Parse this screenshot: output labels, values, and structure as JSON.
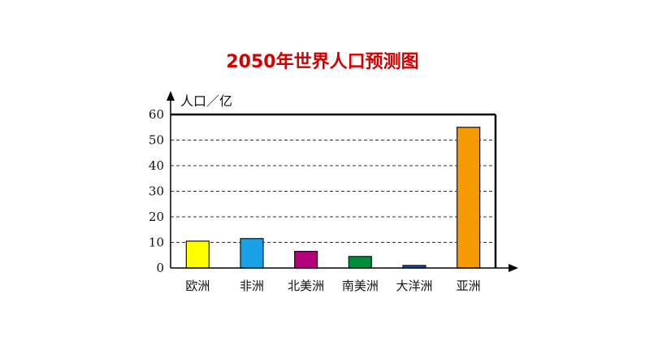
{
  "chart_data": {
    "type": "bar",
    "title": "2050年世界人口预测图",
    "ylabel": "人口／亿",
    "xlabel": "",
    "categories": [
      "欧洲",
      "非洲",
      "北美洲",
      "南美洲",
      "大洋洲",
      "亚洲"
    ],
    "values": [
      10.5,
      11.5,
      6.5,
      4.5,
      1,
      55
    ],
    "colors": [
      "#ffff00",
      "#1aa0e6",
      "#b5007c",
      "#008d3a",
      "#1f4e9c",
      "#f59a00"
    ],
    "ylim": [
      0,
      60
    ],
    "yticks": [
      0,
      10,
      20,
      30,
      40,
      50,
      60
    ],
    "grid": "dashed-horizontal",
    "legend": "none"
  }
}
